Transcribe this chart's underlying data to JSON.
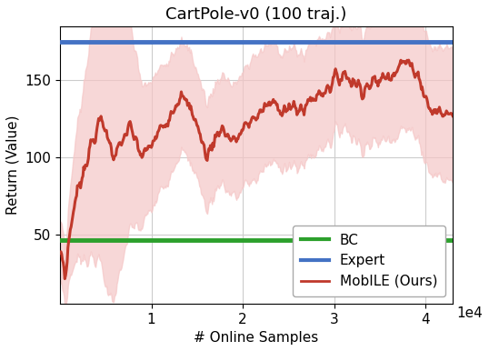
{
  "title": "CartPole-v0 (100 traj.)",
  "xlabel": "# Online Samples",
  "ylabel": "Return (Value)",
  "expert_value": 175,
  "bc_value": 46,
  "expert_color": "#4472C4",
  "bc_color": "#2CA02C",
  "mobile_color": "#C0392B",
  "mobile_fill_color": "#F5C6C6",
  "ylim_bottom": 5,
  "ylim_top": 185,
  "xlim_left": 0,
  "xlim_right": 43000,
  "x_ticks": [
    10000,
    20000,
    30000,
    40000
  ],
  "x_tick_labels": [
    "1",
    "2",
    "3",
    "4"
  ],
  "y_ticks": [
    50,
    100,
    150
  ],
  "expert_linewidth": 3.5,
  "bc_linewidth": 3.5,
  "mobile_linewidth": 2.2,
  "title_fontsize": 13,
  "label_fontsize": 11,
  "tick_fontsize": 11,
  "legend_fontsize": 11
}
